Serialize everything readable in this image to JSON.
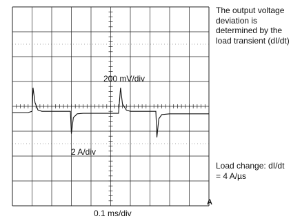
{
  "chart_data": {
    "type": "line",
    "grid": "on (10 x 8 divisions, dotted center axes)",
    "labels": {
      "top_channel_scale": "200 mV/div",
      "bottom_channel_scale": "2 A/div",
      "time_scale": "0.1 ms/div",
      "corner_marker": "A"
    },
    "series": [
      {
        "name": "",
        "x_div": [
          0,
          0.8,
          1.0,
          1.05,
          1.15,
          1.3,
          1.5,
          2.0,
          2.5,
          2.8,
          2.95,
          3.0,
          3.1,
          3.3,
          3.6,
          4.0,
          4.5,
          5.0,
          5.4,
          5.5,
          5.6,
          5.8,
          6.0,
          6.5,
          7.0,
          7.2,
          7.3,
          7.35,
          7.45,
          7.6,
          8.0,
          9.0,
          10.0
        ],
        "y_div": [
          -0.25,
          -0.25,
          -0.2,
          0.75,
          0.15,
          -0.15,
          -0.2,
          -0.2,
          -0.2,
          -0.2,
          -0.2,
          -1.1,
          -0.45,
          -0.3,
          -0.28,
          -0.28,
          -0.28,
          -0.28,
          -0.28,
          0.75,
          0.1,
          -0.15,
          -0.2,
          -0.2,
          -0.2,
          -0.2,
          -0.2,
          -1.25,
          -0.5,
          -0.33,
          -0.3,
          -0.3,
          -0.3
        ]
      }
    ]
  },
  "annotations": {
    "top": "The output voltage deviation is determined by the load transient (dI/dt)",
    "bottom": "Load change: dI/dt = 4 A/µs"
  }
}
